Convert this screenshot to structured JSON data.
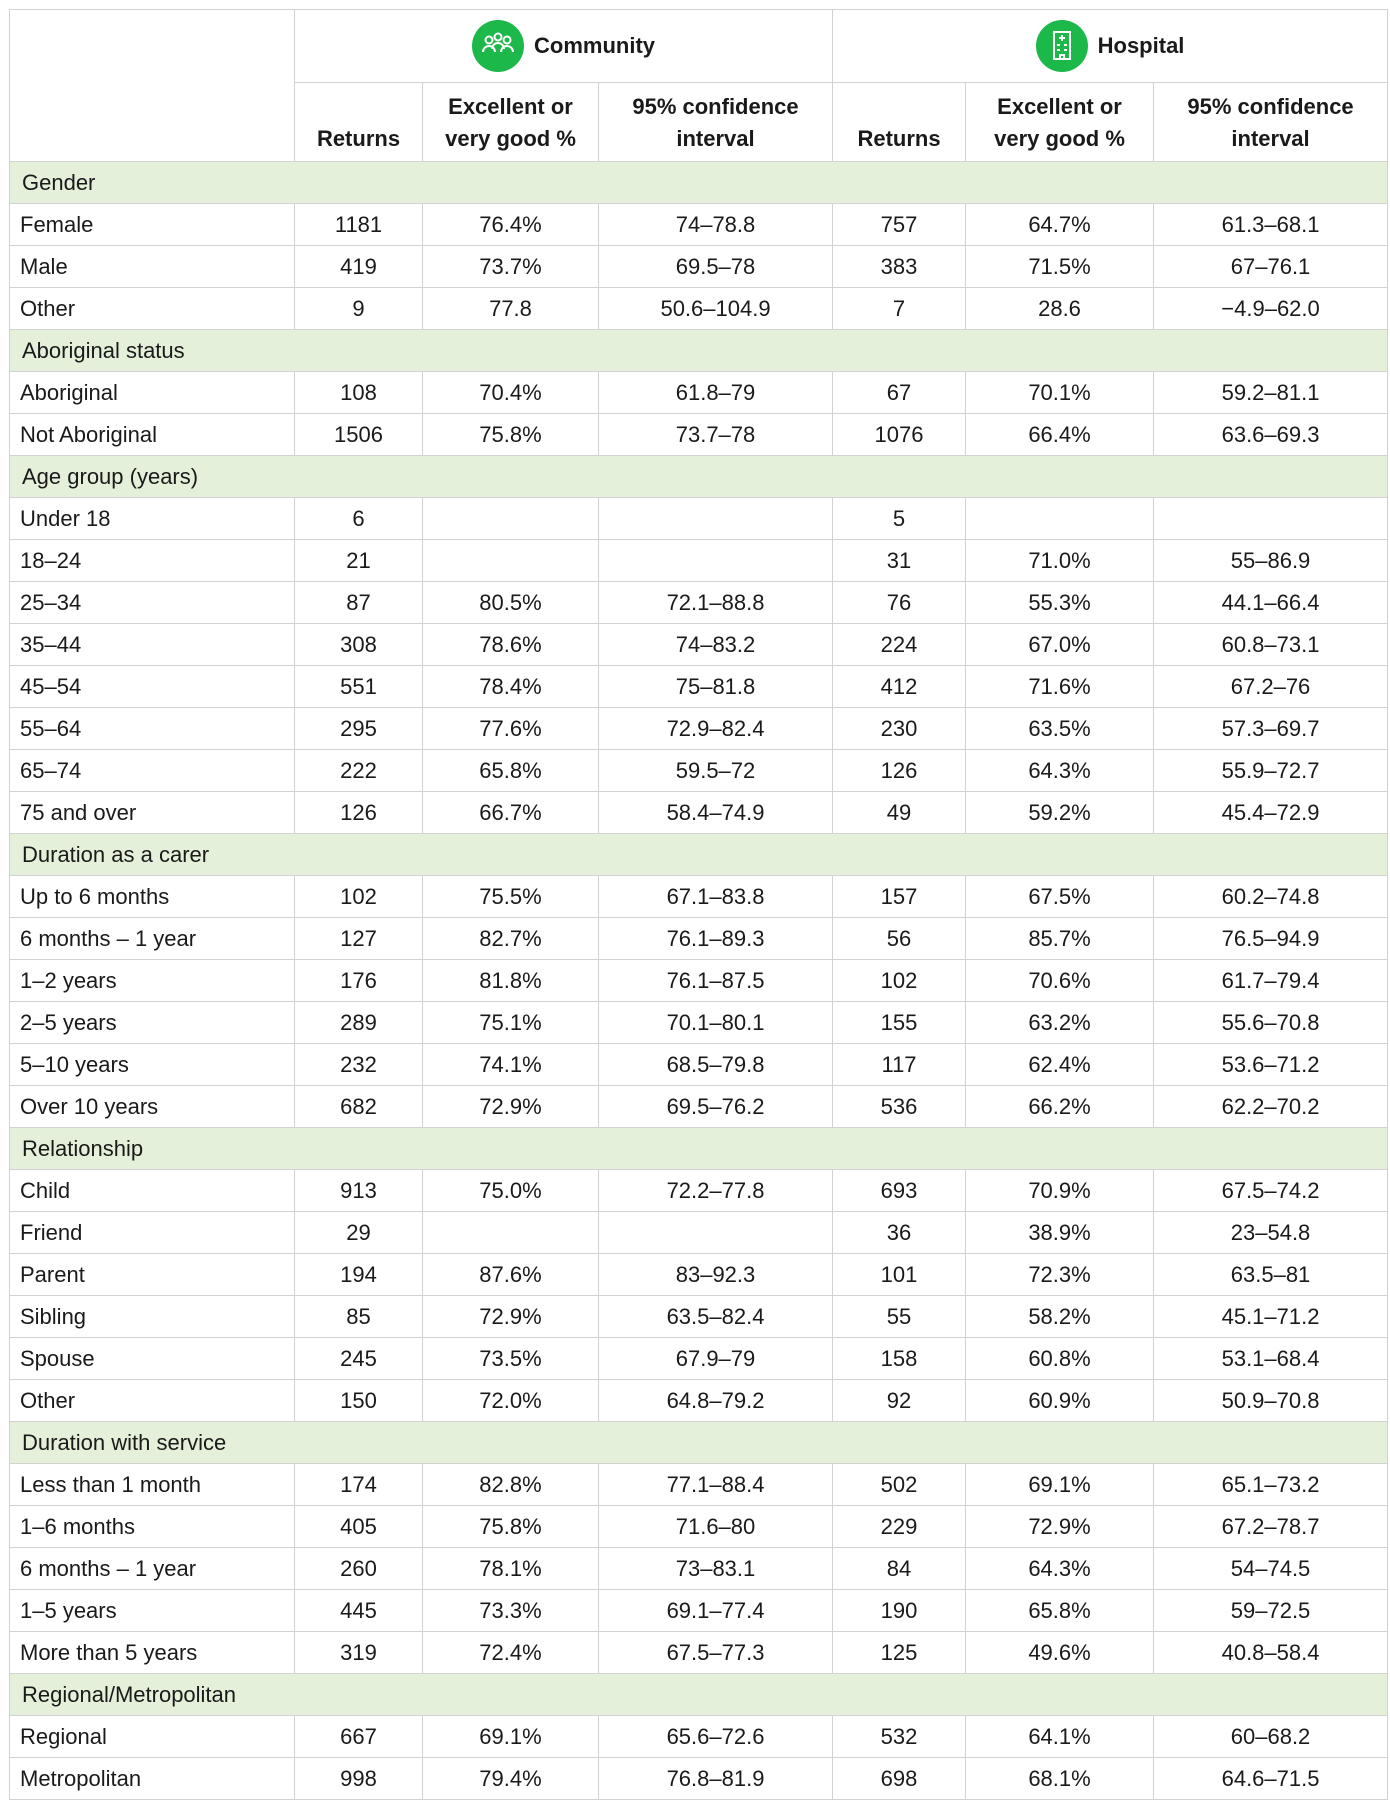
{
  "header": {
    "groups": [
      "Community",
      "Hospital"
    ],
    "columns": [
      "Returns",
      "Excellent or very good %",
      "95% confidence interval",
      "Returns",
      "Excellent or very good %",
      "95% confidence interval"
    ]
  },
  "sections": [
    {
      "title": "Gender",
      "rows": [
        [
          "Female",
          "1181",
          "76.4%",
          "74–78.8",
          "757",
          "64.7%",
          "61.3–68.1"
        ],
        [
          "Male",
          "419",
          "73.7%",
          "69.5–78",
          "383",
          "71.5%",
          "67–76.1"
        ],
        [
          "Other",
          "9",
          "77.8",
          "50.6–104.9",
          "7",
          "28.6",
          "−4.9–62.0"
        ]
      ]
    },
    {
      "title": "Aboriginal status",
      "rows": [
        [
          "Aboriginal",
          "108",
          "70.4%",
          "61.8–79",
          "67",
          "70.1%",
          "59.2–81.1"
        ],
        [
          "Not Aboriginal",
          "1506",
          "75.8%",
          "73.7–78",
          "1076",
          "66.4%",
          "63.6–69.3"
        ]
      ]
    },
    {
      "title": "Age group (years)",
      "rows": [
        [
          "Under 18",
          "6",
          null,
          null,
          "5",
          null,
          null
        ],
        [
          "18–24",
          "21",
          null,
          null,
          "31",
          "71.0%",
          "55–86.9"
        ],
        [
          "25–34",
          "87",
          "80.5%",
          "72.1–88.8",
          "76",
          "55.3%",
          "44.1–66.4"
        ],
        [
          "35–44",
          "308",
          "78.6%",
          "74–83.2",
          "224",
          "67.0%",
          "60.8–73.1"
        ],
        [
          "45–54",
          "551",
          "78.4%",
          "75–81.8",
          "412",
          "71.6%",
          "67.2–76"
        ],
        [
          "55–64",
          "295",
          "77.6%",
          "72.9–82.4",
          "230",
          "63.5%",
          "57.3–69.7"
        ],
        [
          "65–74",
          "222",
          "65.8%",
          "59.5–72",
          "126",
          "64.3%",
          "55.9–72.7"
        ],
        [
          "75 and over",
          "126",
          "66.7%",
          "58.4–74.9",
          "49",
          "59.2%",
          "45.4–72.9"
        ]
      ]
    },
    {
      "title": "Duration as a carer",
      "rows": [
        [
          "Up to 6 months",
          "102",
          "75.5%",
          "67.1–83.8",
          "157",
          "67.5%",
          "60.2–74.8"
        ],
        [
          "6 months – 1 year",
          "127",
          "82.7%",
          "76.1–89.3",
          "56",
          "85.7%",
          "76.5–94.9"
        ],
        [
          "1–2 years",
          "176",
          "81.8%",
          "76.1–87.5",
          "102",
          "70.6%",
          "61.7–79.4"
        ],
        [
          "2–5 years",
          "289",
          "75.1%",
          "70.1–80.1",
          "155",
          "63.2%",
          "55.6–70.8"
        ],
        [
          "5–10 years",
          "232",
          "74.1%",
          "68.5–79.8",
          "117",
          "62.4%",
          "53.6–71.2"
        ],
        [
          "Over 10 years",
          "682",
          "72.9%",
          "69.5–76.2",
          "536",
          "66.2%",
          "62.2–70.2"
        ]
      ]
    },
    {
      "title": "Relationship",
      "rows": [
        [
          "Child",
          "913",
          "75.0%",
          "72.2–77.8",
          "693",
          "70.9%",
          "67.5–74.2"
        ],
        [
          "Friend",
          "29",
          null,
          null,
          "36",
          "38.9%",
          "23–54.8"
        ],
        [
          "Parent",
          "194",
          "87.6%",
          "83–92.3",
          "101",
          "72.3%",
          "63.5–81"
        ],
        [
          "Sibling",
          "85",
          "72.9%",
          "63.5–82.4",
          "55",
          "58.2%",
          "45.1–71.2"
        ],
        [
          "Spouse",
          "245",
          "73.5%",
          "67.9–79",
          "158",
          "60.8%",
          "53.1–68.4"
        ],
        [
          "Other",
          "150",
          "72.0%",
          "64.8–79.2",
          "92",
          "60.9%",
          "50.9–70.8"
        ]
      ]
    },
    {
      "title": "Duration with service",
      "rows": [
        [
          "Less than 1 month",
          "174",
          "82.8%",
          "77.1–88.4",
          "502",
          "69.1%",
          "65.1–73.2"
        ],
        [
          "1–6 months",
          "405",
          "75.8%",
          "71.6–80",
          "229",
          "72.9%",
          "67.2–78.7"
        ],
        [
          "6 months – 1 year",
          "260",
          "78.1%",
          "73–83.1",
          "84",
          "64.3%",
          "54–74.5"
        ],
        [
          "1–5 years",
          "445",
          "73.3%",
          "69.1–77.4",
          "190",
          "65.8%",
          "59–72.5"
        ],
        [
          "More than 5 years",
          "319",
          "72.4%",
          "67.5–77.3",
          "125",
          "49.6%",
          "40.8–58.4"
        ]
      ]
    },
    {
      "title": "Regional/Metropolitan",
      "rows": [
        [
          "Regional",
          "667",
          "69.1%",
          "65.6–72.6",
          "532",
          "64.1%",
          "60–68.2"
        ],
        [
          "Metropolitan",
          "998",
          "79.4%",
          "76.8–81.9",
          "698",
          "68.1%",
          "64.6–71.5"
        ]
      ]
    }
  ]
}
